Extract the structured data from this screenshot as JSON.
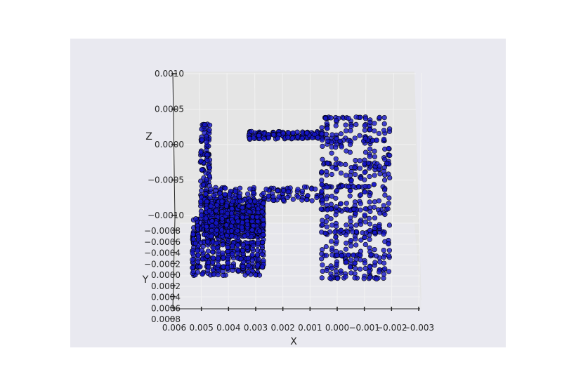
{
  "chart_data": {
    "type": "scatter",
    "projection": "3d",
    "title": "",
    "xlabel": "X",
    "ylabel": "Y",
    "zlabel": "Z",
    "x_ticks": [
      "0.006",
      "0.005",
      "0.004",
      "0.003",
      "0.002",
      "0.001",
      "0.000",
      "−0.001",
      "−0.002",
      "−0.003"
    ],
    "y_ticks": [
      "−0.0008",
      "−0.0006",
      "−0.0004",
      "−0.0002",
      "0.0000",
      "0.0002",
      "0.0004",
      "0.0006",
      "0.0008"
    ],
    "z_ticks": [
      "0.0010",
      "0.0005",
      "0.0000",
      "−0.0005",
      "−0.0010"
    ],
    "xlim": [
      0.006,
      -0.003
    ],
    "zlim": [
      0.001,
      -0.001
    ],
    "grid": true,
    "colors": {
      "figure_bg": "#ffffff",
      "axes_bg": "#e9e9f0",
      "pane": "#e5e5e5",
      "grid": "#f2f2f2",
      "marker_fill": "#1515c8",
      "marker_edge": "#000000"
    },
    "point_clusters": [
      {
        "name": "left-lower-block",
        "x_range": [
          0.0053,
          0.0027
        ],
        "z_range": [
          -0.00185,
          -0.00105
        ],
        "density": "high"
      },
      {
        "name": "left-upper-column",
        "x_range": [
          0.005,
          0.0047
        ],
        "z_range": [
          -0.0012,
          0.0003
        ],
        "density": "medium"
      },
      {
        "name": "top-crossbar",
        "x_range": [
          0.0032,
          0.0005
        ],
        "z_range": [
          0.0001,
          0.0002
        ],
        "density": "medium"
      },
      {
        "name": "middle-crossbar",
        "x_range": [
          0.005,
          0.0005
        ],
        "z_range": [
          -0.0006,
          -0.0008
        ],
        "density": "medium"
      },
      {
        "name": "right-block",
        "x_range": [
          0.0005,
          -0.002
        ],
        "z_range": [
          -0.0019,
          0.0004
        ],
        "density": "high"
      },
      {
        "name": "left-mid-block",
        "x_range": [
          0.0048,
          0.0027
        ],
        "z_range": [
          -0.0013,
          -0.0008
        ],
        "density": "high"
      }
    ]
  }
}
